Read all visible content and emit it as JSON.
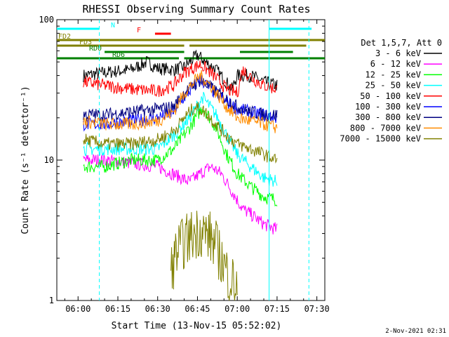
{
  "chart_data": {
    "type": "line",
    "title": "RHESSI Observing Summary Count Rates",
    "xlabel": "Start Time (13-Nov-15 05:52:02)",
    "ylabel": "Count Rate (s⁻¹ detector⁻¹)",
    "y_scale": "log",
    "ylim": [
      1,
      100
    ],
    "xlim": [
      "05:52",
      "07:33"
    ],
    "x_ticks": [
      "06:00",
      "06:15",
      "06:30",
      "06:45",
      "07:00",
      "07:15",
      "07:30"
    ],
    "y_ticks": [
      "1",
      "10",
      "100"
    ],
    "legend_title": "Det 1,5,7, Att 0",
    "legend_position": "right",
    "footer": "2-Nov-2021 02:31",
    "series": [
      {
        "name": "3 - 6 keV",
        "color": "#000000",
        "x": [
          "06:02",
          "06:10",
          "06:20",
          "06:26",
          "06:30",
          "06:36",
          "06:40",
          "06:45",
          "06:48",
          "06:52",
          "06:58",
          "07:00",
          "07:05",
          "07:10",
          "07:15"
        ],
        "values": [
          40,
          42,
          44,
          50,
          45,
          44,
          46,
          56,
          50,
          44,
          32,
          40,
          40,
          36,
          34
        ]
      },
      {
        "name": "6 - 12 keV",
        "color": "#ff00ff",
        "x": [
          "06:02",
          "06:10",
          "06:20",
          "06:30",
          "06:42",
          "06:46",
          "06:50",
          "06:54",
          "06:58",
          "07:02",
          "07:06",
          "07:10",
          "07:15"
        ],
        "values": [
          10,
          10,
          9.5,
          9,
          7,
          8,
          9,
          8,
          6,
          4.5,
          4,
          3.5,
          3.2
        ]
      },
      {
        "name": "12 - 25 keV",
        "color": "#00ff00",
        "x": [
          "06:02",
          "06:10",
          "06:20",
          "06:30",
          "06:36",
          "06:42",
          "06:47",
          "06:52",
          "06:56",
          "07:00",
          "07:05",
          "07:10",
          "07:15"
        ],
        "values": [
          9,
          9,
          10,
          10,
          12,
          17,
          24,
          17,
          11,
          8,
          6.5,
          5.5,
          5.2
        ]
      },
      {
        "name": "25 - 50 keV",
        "color": "#00ffff",
        "x": [
          "06:02",
          "06:10",
          "06:20",
          "06:30",
          "06:36",
          "06:42",
          "06:47",
          "06:52",
          "06:56",
          "07:00",
          "07:05",
          "07:10",
          "07:15"
        ],
        "values": [
          12,
          12,
          12,
          12,
          15,
          20,
          28,
          21,
          15,
          11,
          9,
          7.5,
          7
        ]
      },
      {
        "name": "50 - 100 keV",
        "color": "#ff0000",
        "x": [
          "06:02",
          "06:10",
          "06:20",
          "06:30",
          "06:36",
          "06:40",
          "06:46",
          "06:50",
          "06:56",
          "07:00",
          "07:02",
          "07:06",
          "07:10",
          "07:15"
        ],
        "values": [
          36,
          34,
          32,
          31,
          34,
          42,
          48,
          42,
          32,
          30,
          44,
          38,
          34,
          32
        ]
      },
      {
        "name": "100 - 300 keV",
        "color": "#0000ff",
        "x": [
          "06:02",
          "06:10",
          "06:20",
          "06:30",
          "06:36",
          "06:40",
          "06:46",
          "06:50",
          "06:56",
          "07:00",
          "07:05",
          "07:10",
          "07:15"
        ],
        "values": [
          18,
          18,
          19,
          20,
          22,
          28,
          38,
          32,
          26,
          23,
          22,
          21,
          20
        ]
      },
      {
        "name": "300 - 800 keV",
        "color": "#000080",
        "x": [
          "06:02",
          "06:10",
          "06:20",
          "06:30",
          "06:36",
          "06:40",
          "06:46",
          "06:50",
          "06:56",
          "07:00",
          "07:05",
          "07:10",
          "07:15"
        ],
        "values": [
          21,
          21,
          22,
          23,
          24,
          30,
          37,
          33,
          27,
          24,
          22,
          21,
          21
        ]
      },
      {
        "name": "800 - 7000 keV",
        "color": "#ff8c00",
        "x": [
          "06:02",
          "06:10",
          "06:20",
          "06:30",
          "06:36",
          "06:40",
          "06:46",
          "06:50",
          "06:56",
          "07:00",
          "07:05",
          "07:10",
          "07:15"
        ],
        "values": [
          19,
          18,
          18,
          19,
          22,
          30,
          40,
          34,
          24,
          20,
          19,
          18,
          17
        ]
      },
      {
        "name": "7000 - 15000 keV",
        "color": "#808000",
        "x": [
          "06:02",
          "06:10",
          "06:20",
          "06:30",
          "06:36",
          "06:40",
          "06:44",
          "06:48",
          "06:52",
          "06:56",
          "07:00",
          "07:05",
          "07:10",
          "07:15"
        ],
        "values": [
          14,
          13,
          13,
          14,
          16,
          20,
          24,
          22,
          18,
          15,
          13,
          12,
          11,
          10
        ]
      }
    ],
    "gamma_counts": {
      "name_hidden": true,
      "color": "#808000",
      "x": [
        "06:35",
        "06:37",
        "06:40",
        "06:42",
        "06:44",
        "06:46",
        "06:48",
        "06:50",
        "06:52",
        "06:54",
        "06:56",
        "06:58",
        "07:00"
      ],
      "values": [
        1.6,
        2.2,
        2.6,
        2.8,
        3.0,
        3.2,
        3.0,
        2.8,
        2.4,
        2.0,
        1.6,
        1.4,
        1.2
      ]
    },
    "flags": [
      {
        "label": "N",
        "color": "#00ffff",
        "segments": [
          [
            "05:52",
            "06:08"
          ],
          [
            "07:12",
            "07:28"
          ]
        ]
      },
      {
        "label": "F",
        "color": "#ff0000",
        "segments": [
          [
            "06:29",
            "06:35"
          ]
        ]
      },
      {
        "label": "FD2",
        "color": "#808000",
        "segments": [
          [
            "05:52",
            "07:33"
          ]
        ]
      },
      {
        "label": "FD3",
        "color": "#808000",
        "segments": [
          [
            "05:52",
            "06:40"
          ],
          [
            "06:42",
            "07:26"
          ]
        ]
      },
      {
        "label": "RD0",
        "color": "#008000",
        "segments": [
          [
            "06:10",
            "06:40"
          ],
          [
            "07:01",
            "07:21"
          ]
        ]
      },
      {
        "label": "RD6",
        "color": "#008000",
        "segments": [
          [
            "05:52",
            "06:38"
          ],
          [
            "06:40",
            "07:26"
          ],
          [
            "07:26",
            "07:33"
          ]
        ]
      }
    ],
    "night_boundaries": [
      {
        "x": "06:08",
        "style": "dashed",
        "color": "#00ffff"
      },
      {
        "x": "07:12",
        "style": "solid",
        "color": "#00ffff"
      },
      {
        "x": "07:27",
        "style": "dashed",
        "color": "#00ffff"
      }
    ]
  }
}
